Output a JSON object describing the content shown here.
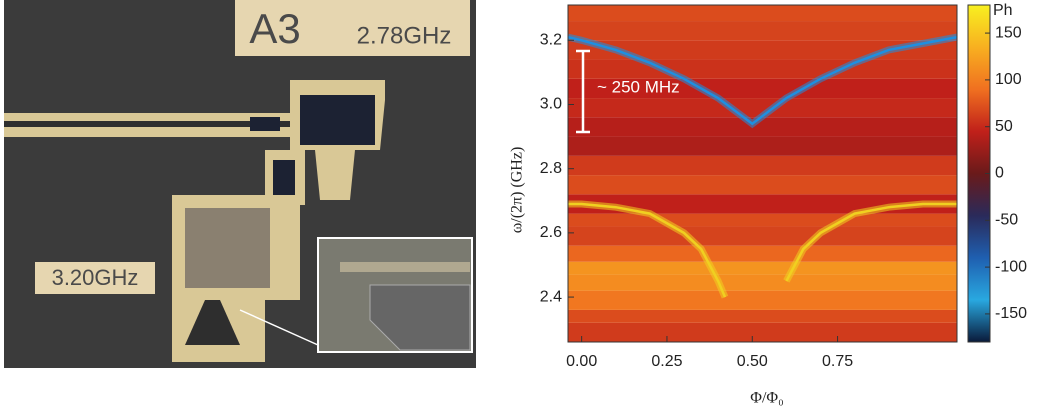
{
  "image_labels": {
    "chip": "A3",
    "upper_frequency": "2.78GHz",
    "lower_frequency": "3.20GHz"
  },
  "chart_data": {
    "type": "heatmap",
    "xlabel": "Φ/Φ₀",
    "ylabel": "ω/(2π) (GHz)",
    "annotation": "~ 250 MHz",
    "xlim": [
      -0.04,
      1.1
    ],
    "ylim": [
      2.26,
      3.31
    ],
    "xticks": [
      {
        "value": 0,
        "label": "0.00"
      },
      0.25,
      {
        "value": 0.5,
        "label": "0.50"
      },
      0.75
    ],
    "yticks": [
      2.4,
      2.6,
      2.8,
      {
        "value": 3,
        "label": "3.0"
      },
      3.2
    ],
    "bands": {
      "bins": [
        2.26,
        2.32,
        2.36,
        2.42,
        2.47,
        2.51,
        2.56,
        2.62,
        2.66,
        2.72,
        2.78,
        2.84,
        2.9,
        2.96,
        3.02,
        3.08,
        3.14,
        3.2,
        3.26,
        3.31
      ],
      "values": [
        60,
        70,
        95,
        110,
        115,
        85,
        65,
        70,
        45,
        70,
        60,
        35,
        40,
        50,
        45,
        55,
        60,
        65,
        70
      ]
    },
    "series": [
      {
        "color": "#1e8fe0",
        "x": [
          -0.04,
          0,
          0.1,
          0.2,
          0.3,
          0.4,
          0.45,
          0.5,
          0.55,
          0.6,
          0.7,
          0.8,
          0.9,
          1.0,
          1.1
        ],
        "values": [
          3.21,
          3.2,
          3.17,
          3.13,
          3.08,
          3.02,
          2.98,
          2.94,
          2.98,
          3.02,
          3.08,
          3.13,
          3.17,
          3.19,
          3.21
        ]
      },
      {
        "color": "#f0d020",
        "x": [
          -0.04,
          0,
          0.1,
          0.2,
          0.3,
          0.35,
          0.4,
          0.42,
          0.58,
          0.6,
          0.65,
          0.7,
          0.8,
          0.9,
          1.0,
          1.1
        ],
        "values": [
          2.69,
          2.69,
          2.68,
          2.66,
          2.6,
          2.55,
          2.45,
          2.4,
          null,
          2.45,
          2.55,
          2.6,
          2.66,
          2.68,
          2.69,
          2.69
        ]
      }
    ],
    "clim": [
      -180,
      180
    ],
    "colormap": [
      "#0a1a3a",
      "#29a8e0",
      "#1f5fb0",
      "#2a2a5a",
      "#6a1a1a",
      "#c0201a",
      "#f07020",
      "#f8b020",
      "#f8f020"
    ],
    "colorbar_title": "Ph",
    "cbticks": [
      150,
      100,
      50,
      0,
      -50,
      -100,
      -150
    ]
  }
}
